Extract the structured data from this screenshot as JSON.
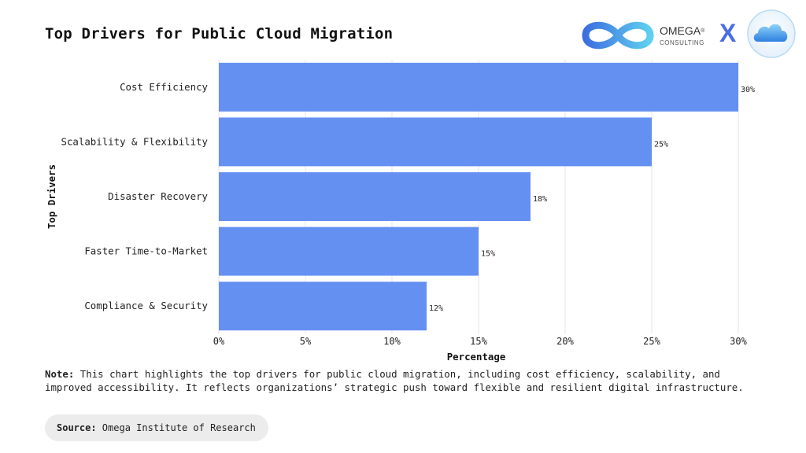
{
  "title": "Top Drivers for Public Cloud Migration",
  "brand": {
    "name": "OMEGA",
    "registered": "®",
    "subtitle": "CONSULTING",
    "separator": "X",
    "icons": [
      "omega-infinity-logo-icon",
      "cloud-icon"
    ]
  },
  "chart_data": {
    "type": "bar",
    "orientation": "horizontal",
    "categories": [
      "Cost Efficiency",
      "Scalability & Flexibility",
      "Disaster Recovery",
      "Faster Time-to-Market",
      "Compliance & Security"
    ],
    "values": [
      30,
      25,
      18,
      15,
      12
    ],
    "value_labels": [
      "30%",
      "25%",
      "18%",
      "15%",
      "12%"
    ],
    "xlabel": "Percentage",
    "ylabel": "Top Drivers",
    "xlim": [
      0,
      30
    ],
    "xticks": [
      0,
      5,
      10,
      15,
      20,
      25,
      30
    ],
    "xtick_labels": [
      "0%",
      "5%",
      "10%",
      "15%",
      "20%",
      "25%",
      "30%"
    ],
    "grid": "vertical",
    "bar_color": "#6490f2"
  },
  "note": {
    "label": "Note:",
    "text": " This chart highlights the top drivers for public cloud migration, including cost efficiency, scalability, and improved accessibility. It reflects organizations’ strategic push toward flexible and resilient digital infrastructure."
  },
  "source": {
    "label": "Source:",
    "text": " Omega Institute of Research"
  }
}
